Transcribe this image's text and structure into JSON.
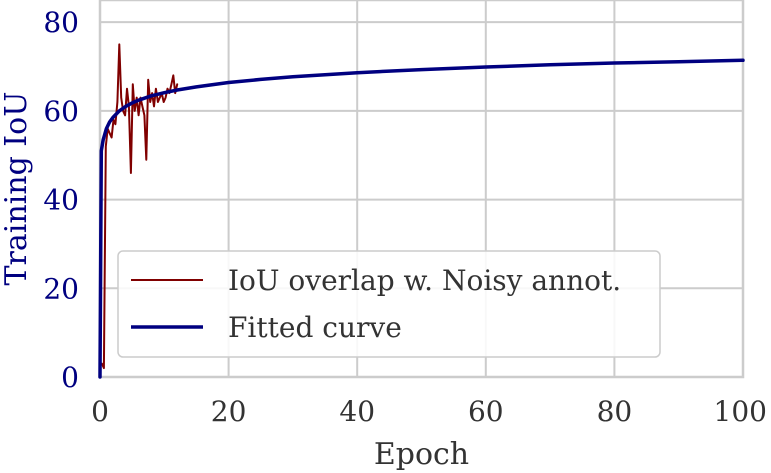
{
  "chart_data": {
    "type": "line",
    "xlabel": "Epoch",
    "ylabel": "Training IoU",
    "xlim": [
      0,
      100
    ],
    "ylim": [
      0,
      85
    ],
    "x_ticks": [
      "0",
      "20",
      "40",
      "60",
      "80",
      "100"
    ],
    "y_ticks": [
      "0",
      "20",
      "40",
      "60",
      "80"
    ],
    "grid": true,
    "legend_position": "lower-right",
    "colors": {
      "ylabel": "#000080",
      "grid": "#cccccc",
      "axis": "#cccccc"
    },
    "series": [
      {
        "name": "IoU overlap w. Noisy annot.",
        "color": "#800000",
        "x": [
          0.3,
          0.6,
          0.9,
          1.2,
          1.5,
          1.8,
          2.1,
          2.4,
          2.7,
          3.0,
          3.3,
          3.6,
          3.9,
          4.2,
          4.5,
          4.8,
          5.1,
          5.4,
          5.7,
          6.0,
          6.3,
          6.6,
          6.9,
          7.2,
          7.5,
          7.8,
          8.1,
          8.4,
          8.7,
          9.0,
          9.3,
          9.6,
          9.9,
          10.2,
          10.5,
          10.8,
          11.1,
          11.4,
          11.7,
          12.0
        ],
        "y": [
          3,
          2,
          52,
          56,
          55,
          54,
          58,
          57,
          62,
          75,
          63,
          60,
          59,
          65,
          61,
          46,
          66,
          60,
          63,
          59,
          63,
          61,
          59,
          49,
          67,
          62,
          64,
          61,
          65,
          62,
          63,
          64,
          62,
          63,
          65,
          64,
          66,
          68,
          64,
          66
        ]
      },
      {
        "name": "Fitted curve",
        "color": "#000080",
        "x": [
          0,
          0.2,
          0.5,
          1,
          1.5,
          2,
          3,
          4,
          5,
          6,
          8,
          10,
          12,
          15,
          20,
          25,
          30,
          40,
          50,
          60,
          70,
          80,
          90,
          100
        ],
        "y": [
          0,
          51,
          53.5,
          56,
          57.5,
          58.5,
          60,
          61,
          61.8,
          62.4,
          63.4,
          64.1,
          64.7,
          65.4,
          66.4,
          67.1,
          67.7,
          68.6,
          69.3,
          69.9,
          70.4,
          70.8,
          71.1,
          71.4
        ]
      }
    ]
  }
}
